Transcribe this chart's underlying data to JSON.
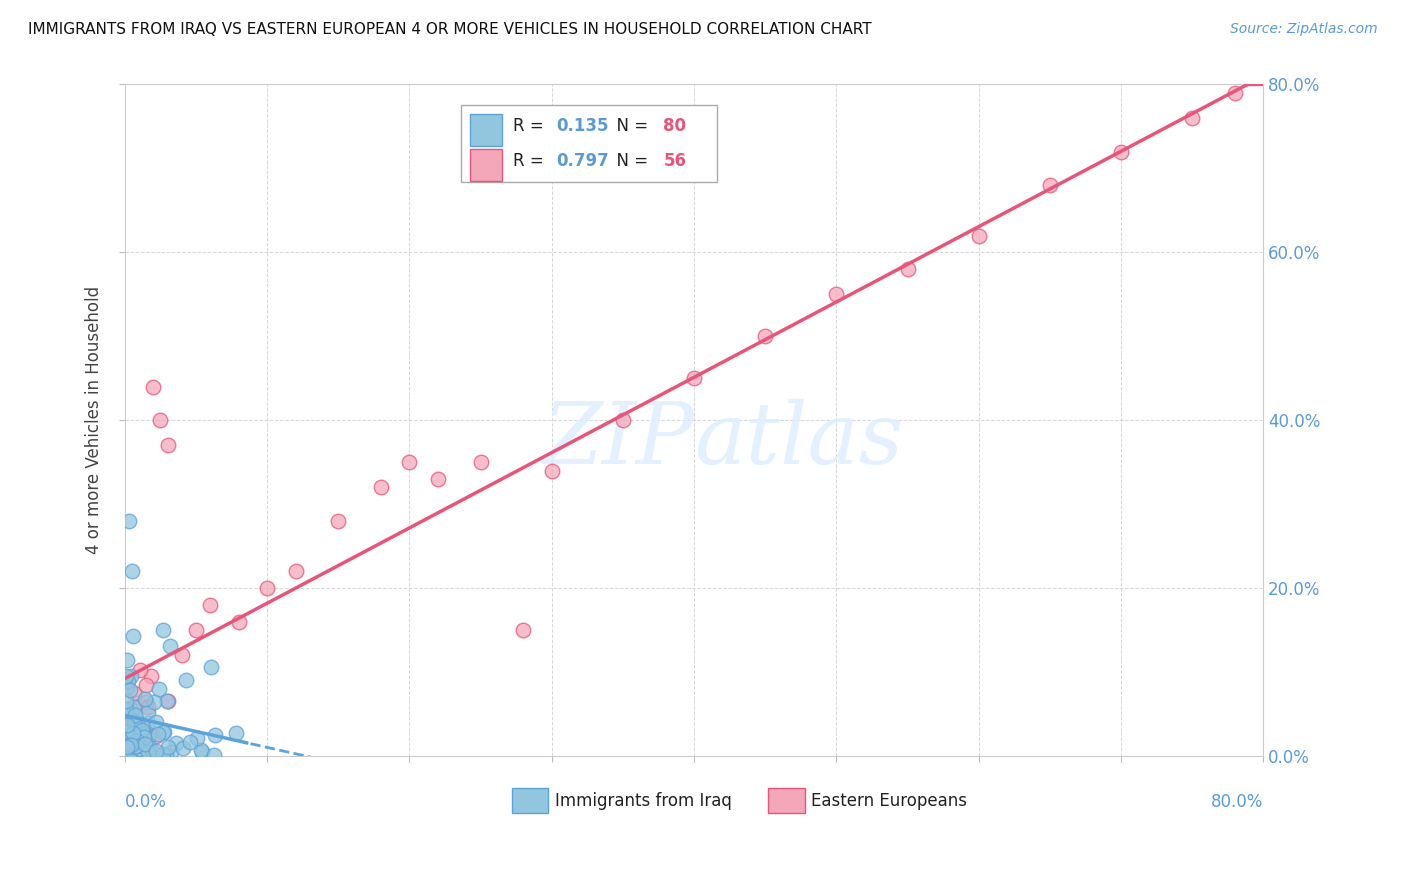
{
  "title": "IMMIGRANTS FROM IRAQ VS EASTERN EUROPEAN 4 OR MORE VEHICLES IN HOUSEHOLD CORRELATION CHART",
  "source": "Source: ZipAtlas.com",
  "ylabel": "4 or more Vehicles in Household",
  "watermark": "ZIPatlas",
  "iraq_color": "#92C5DE",
  "iraq_edge_color": "#5BA3D9",
  "eastern_color": "#F4A7B9",
  "eastern_edge_color": "#E8547A",
  "iraq_trend_color": "#5BA3D9",
  "eastern_trend_color": "#E8547A",
  "R_iraq": 0.135,
  "N_iraq": 80,
  "R_eastern": 0.797,
  "N_eastern": 56,
  "xlim": [
    0.0,
    0.8
  ],
  "ylim": [
    0.0,
    0.8
  ],
  "label_color": "#5B9BD5",
  "grid_color": "#CCCCCC",
  "bg_color": "#FFFFFF",
  "iraq_trend_intercept": 0.025,
  "iraq_trend_slope": 0.12,
  "iraq_trend_solid_end": 0.13,
  "eastern_trend_intercept": -0.03,
  "eastern_trend_slope": 1.05
}
